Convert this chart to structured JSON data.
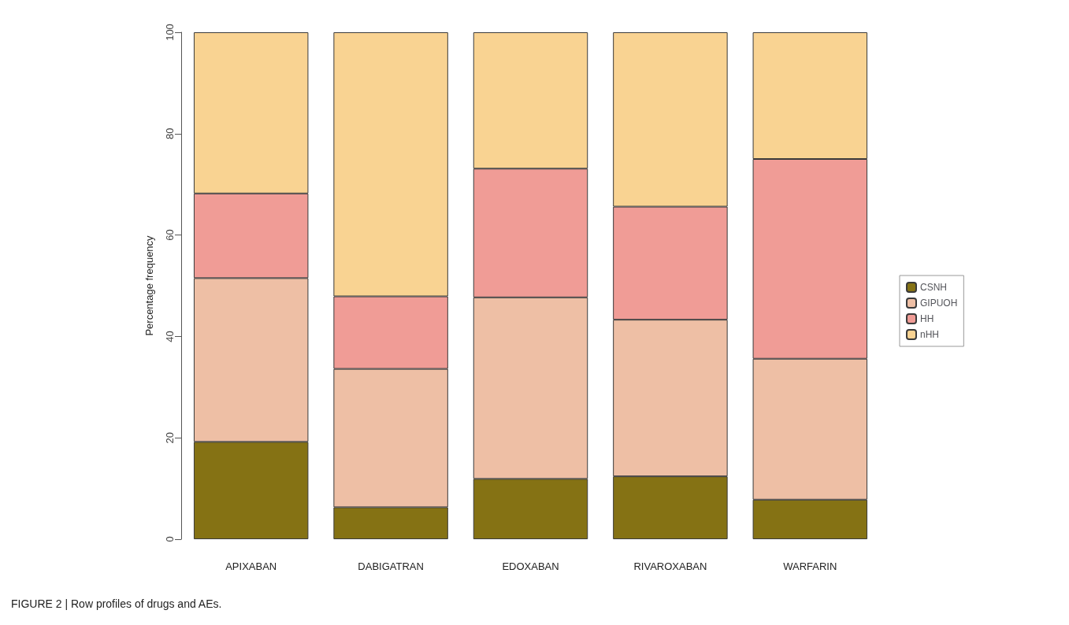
{
  "chart_data": {
    "type": "bar",
    "stacked": true,
    "ylabel": "Percentage frequency",
    "categories": [
      "APIXABAN",
      "DABIGATRAN",
      "EDOXABAN",
      "RIVAROXABAN",
      "WARFARIN"
    ],
    "series": [
      {
        "name": "CSNH",
        "color": "#857214",
        "values": [
          19.2,
          6.3,
          11.9,
          12.4,
          7.8
        ]
      },
      {
        "name": "GIPUOH",
        "color": "#eebfa5",
        "values": [
          32.3,
          27.3,
          35.8,
          30.9,
          27.8
        ]
      },
      {
        "name": "HH",
        "color": "#f09c96",
        "values": [
          16.7,
          14.3,
          25.4,
          22.3,
          39.4
        ]
      },
      {
        "name": "nHH",
        "color": "#f9d392",
        "values": [
          31.8,
          52.1,
          26.9,
          34.4,
          25.0
        ]
      }
    ],
    "ylim": [
      0,
      100
    ],
    "yticks": [
      0,
      20,
      40,
      60,
      80,
      100
    ],
    "grid": false,
    "legend": "right",
    "annotations": [
      "FIGURE 2 | Row profiles of drugs and AEs."
    ]
  }
}
